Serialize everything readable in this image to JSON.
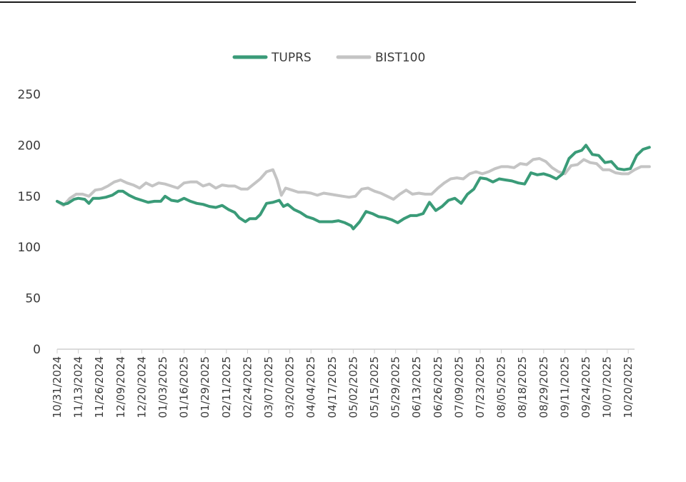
{
  "chart_data": {
    "type": "line",
    "title": "",
    "xlabel": "",
    "ylabel": "",
    "ylim": [
      0,
      250
    ],
    "yticks": [
      0,
      50,
      100,
      150,
      200,
      250
    ],
    "grid": false,
    "legend_position": "top-center",
    "categories": [
      "10/31/2024",
      "11/13/2024",
      "11/26/2024",
      "12/09/2024",
      "12/20/2024",
      "01/03/2025",
      "01/16/2025",
      "01/29/2025",
      "02/11/2025",
      "02/24/2025",
      "03/07/2025",
      "03/20/2025",
      "04/04/2025",
      "04/17/2025",
      "05/02/2025",
      "05/15/2025",
      "05/29/2025",
      "06/13/2025",
      "06/26/2025",
      "07/09/2025",
      "07/23/2025",
      "08/05/2025",
      "08/18/2025",
      "08/29/2025",
      "09/11/2025",
      "09/24/2025",
      "10/07/2025",
      "10/20/2025"
    ],
    "series": [
      {
        "name": "TUPRS",
        "color": "#3a9b78",
        "values": [
          [
            0,
            145
          ],
          [
            0.3,
            142
          ],
          [
            0.5,
            143
          ],
          [
            0.8,
            147
          ],
          [
            1,
            148
          ],
          [
            1.3,
            147
          ],
          [
            1.5,
            143
          ],
          [
            1.7,
            148
          ],
          [
            2,
            148
          ],
          [
            2.3,
            149
          ],
          [
            2.6,
            151
          ],
          [
            2.9,
            155
          ],
          [
            3.1,
            155
          ],
          [
            3.4,
            151
          ],
          [
            3.7,
            148
          ],
          [
            4,
            146
          ],
          [
            4.3,
            144
          ],
          [
            4.6,
            145
          ],
          [
            4.9,
            145
          ],
          [
            5.1,
            150
          ],
          [
            5.4,
            146
          ],
          [
            5.7,
            145
          ],
          [
            6,
            148
          ],
          [
            6.3,
            145
          ],
          [
            6.6,
            143
          ],
          [
            6.9,
            142
          ],
          [
            7.2,
            140
          ],
          [
            7.5,
            139
          ],
          [
            7.8,
            141
          ],
          [
            8.1,
            137
          ],
          [
            8.4,
            134
          ],
          [
            8.6,
            129
          ],
          [
            8.9,
            125
          ],
          [
            9.1,
            128
          ],
          [
            9.4,
            128
          ],
          [
            9.6,
            132
          ],
          [
            9.9,
            143
          ],
          [
            10.2,
            144
          ],
          [
            10.5,
            146
          ],
          [
            10.7,
            140
          ],
          [
            10.9,
            142
          ],
          [
            11.2,
            137
          ],
          [
            11.5,
            134
          ],
          [
            11.8,
            130
          ],
          [
            12.1,
            128
          ],
          [
            12.4,
            125
          ],
          [
            12.7,
            125
          ],
          [
            13,
            125
          ],
          [
            13.3,
            126
          ],
          [
            13.6,
            124
          ],
          [
            13.9,
            121
          ],
          [
            14,
            118
          ],
          [
            14.3,
            125
          ],
          [
            14.6,
            135
          ],
          [
            14.9,
            133
          ],
          [
            15.2,
            130
          ],
          [
            15.5,
            129
          ],
          [
            15.8,
            127
          ],
          [
            16.1,
            124
          ],
          [
            16.4,
            128
          ],
          [
            16.7,
            131
          ],
          [
            17,
            131
          ],
          [
            17.3,
            133
          ],
          [
            17.6,
            144
          ],
          [
            17.9,
            136
          ],
          [
            18.2,
            140
          ],
          [
            18.5,
            146
          ],
          [
            18.8,
            148
          ],
          [
            19.1,
            143
          ],
          [
            19.4,
            152
          ],
          [
            19.7,
            157
          ],
          [
            20,
            168
          ],
          [
            20.3,
            167
          ],
          [
            20.6,
            164
          ],
          [
            20.9,
            167
          ],
          [
            21.2,
            166
          ],
          [
            21.5,
            165
          ],
          [
            21.8,
            163
          ],
          [
            22.1,
            162
          ],
          [
            22.4,
            173
          ],
          [
            22.7,
            171
          ],
          [
            23,
            172
          ],
          [
            23.3,
            170
          ],
          [
            23.6,
            167
          ],
          [
            23.9,
            172
          ],
          [
            24.2,
            187
          ],
          [
            24.5,
            193
          ],
          [
            24.8,
            195
          ],
          [
            25,
            200
          ],
          [
            25.3,
            191
          ],
          [
            25.6,
            190
          ],
          [
            25.9,
            183
          ],
          [
            26.2,
            184
          ],
          [
            26.5,
            177
          ],
          [
            26.8,
            176
          ],
          [
            27.1,
            177
          ],
          [
            27.4,
            190
          ],
          [
            27.7,
            196
          ],
          [
            28,
            198
          ]
        ]
      },
      {
        "name": "BIST100",
        "color": "#c4c4c4",
        "values": [
          [
            0,
            145
          ],
          [
            0.3,
            141
          ],
          [
            0.6,
            148
          ],
          [
            0.9,
            152
          ],
          [
            1.2,
            152
          ],
          [
            1.5,
            150
          ],
          [
            1.8,
            156
          ],
          [
            2.1,
            157
          ],
          [
            2.4,
            160
          ],
          [
            2.7,
            164
          ],
          [
            3,
            166
          ],
          [
            3.3,
            163
          ],
          [
            3.6,
            161
          ],
          [
            3.9,
            158
          ],
          [
            4.2,
            163
          ],
          [
            4.5,
            160
          ],
          [
            4.8,
            163
          ],
          [
            5.1,
            162
          ],
          [
            5.4,
            160
          ],
          [
            5.7,
            158
          ],
          [
            6,
            163
          ],
          [
            6.3,
            164
          ],
          [
            6.6,
            164
          ],
          [
            6.9,
            160
          ],
          [
            7.2,
            162
          ],
          [
            7.5,
            158
          ],
          [
            7.8,
            161
          ],
          [
            8.1,
            160
          ],
          [
            8.4,
            160
          ],
          [
            8.7,
            157
          ],
          [
            9,
            157
          ],
          [
            9.3,
            162
          ],
          [
            9.6,
            167
          ],
          [
            9.9,
            174
          ],
          [
            10.2,
            176
          ],
          [
            10.4,
            166
          ],
          [
            10.6,
            151
          ],
          [
            10.8,
            158
          ],
          [
            11.1,
            156
          ],
          [
            11.4,
            154
          ],
          [
            11.7,
            154
          ],
          [
            12,
            153
          ],
          [
            12.3,
            151
          ],
          [
            12.6,
            153
          ],
          [
            12.9,
            152
          ],
          [
            13.2,
            151
          ],
          [
            13.5,
            150
          ],
          [
            13.8,
            149
          ],
          [
            14.1,
            150
          ],
          [
            14.4,
            157
          ],
          [
            14.7,
            158
          ],
          [
            15,
            155
          ],
          [
            15.3,
            153
          ],
          [
            15.6,
            150
          ],
          [
            15.9,
            147
          ],
          [
            16.2,
            152
          ],
          [
            16.5,
            156
          ],
          [
            16.8,
            152
          ],
          [
            17.1,
            153
          ],
          [
            17.4,
            152
          ],
          [
            17.7,
            152
          ],
          [
            18,
            158
          ],
          [
            18.3,
            163
          ],
          [
            18.6,
            167
          ],
          [
            18.9,
            168
          ],
          [
            19.2,
            167
          ],
          [
            19.5,
            172
          ],
          [
            19.8,
            174
          ],
          [
            20.1,
            172
          ],
          [
            20.4,
            174
          ],
          [
            20.7,
            177
          ],
          [
            21,
            179
          ],
          [
            21.3,
            179
          ],
          [
            21.6,
            178
          ],
          [
            21.9,
            182
          ],
          [
            22.2,
            181
          ],
          [
            22.5,
            186
          ],
          [
            22.8,
            187
          ],
          [
            23.1,
            184
          ],
          [
            23.4,
            178
          ],
          [
            23.7,
            174
          ],
          [
            24,
            172
          ],
          [
            24.3,
            180
          ],
          [
            24.6,
            181
          ],
          [
            24.9,
            186
          ],
          [
            25.2,
            183
          ],
          [
            25.5,
            182
          ],
          [
            25.8,
            176
          ],
          [
            26.1,
            176
          ],
          [
            26.4,
            173
          ],
          [
            26.7,
            172
          ],
          [
            27,
            172
          ],
          [
            27.3,
            176
          ],
          [
            27.6,
            179
          ],
          [
            28,
            179
          ]
        ]
      }
    ]
  }
}
